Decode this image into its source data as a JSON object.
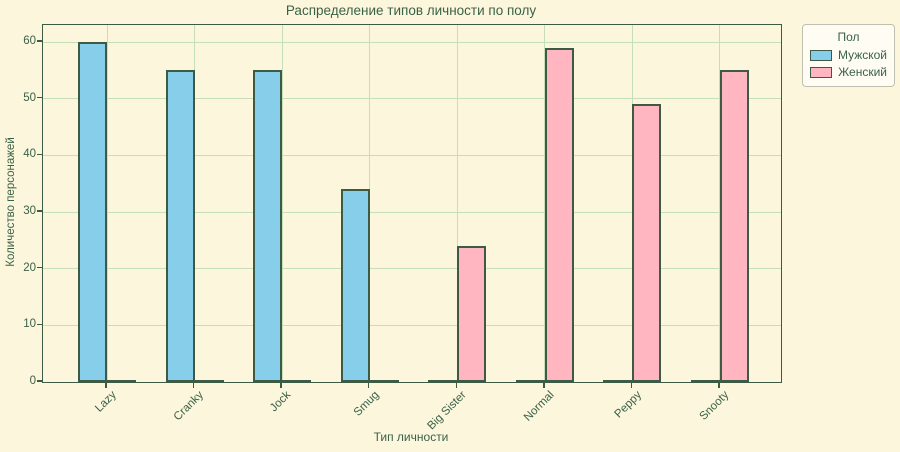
{
  "figure": {
    "background_color": "#FCF6DC",
    "text_color": "#3A6147"
  },
  "chart_data": {
    "type": "bar",
    "title": "Распределение типов личности по полу",
    "xlabel": "Тип личности",
    "ylabel": "Количество персонажей",
    "categories": [
      "Lazy",
      "Cranky",
      "Jock",
      "Smug",
      "Big Sister",
      "Normal",
      "Peppy",
      "Snooty"
    ],
    "series": [
      {
        "name": "Мужской",
        "color": "#87CEEB",
        "values": [
          60,
          55,
          55,
          34,
          0,
          0,
          0,
          0
        ]
      },
      {
        "name": "Женский",
        "color": "#FFB6C1",
        "values": [
          0,
          0,
          0,
          0,
          24,
          59,
          49,
          55
        ]
      }
    ],
    "legend_title": "Пол",
    "legend_position": "outside upper right",
    "yticks": [
      0,
      10,
      20,
      30,
      40,
      50,
      60
    ],
    "ylim": [
      0,
      63
    ],
    "grid": true,
    "grid_color": "#C6DFB8",
    "bar_edge_color": "#3D5A45"
  }
}
